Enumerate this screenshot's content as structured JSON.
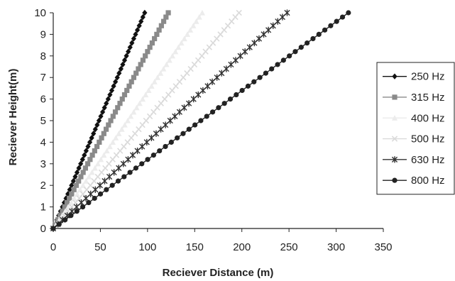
{
  "chart_data": {
    "type": "scatter",
    "title": "",
    "xlabel": "Reciever Distance (m)",
    "ylabel": "Reciever Height(m)",
    "xlim": [
      0,
      350
    ],
    "ylim": [
      0,
      10
    ],
    "x_ticks": [
      0,
      50,
      100,
      150,
      200,
      250,
      300,
      350
    ],
    "y_ticks": [
      0,
      1,
      2,
      3,
      4,
      5,
      6,
      7,
      8,
      9,
      10
    ],
    "grid": false,
    "legend_position": "right",
    "series": [
      {
        "name": "250 Hz",
        "marker": "diamond",
        "color": "#111111",
        "x": [
          0,
          97
        ],
        "y": [
          0,
          10
        ]
      },
      {
        "name": "315 Hz",
        "marker": "square",
        "color": "#8a8a8a",
        "x": [
          0,
          122
        ],
        "y": [
          0,
          10
        ]
      },
      {
        "name": "400 Hz",
        "marker": "triangle",
        "color": "#ececec",
        "x": [
          0,
          158
        ],
        "y": [
          0,
          10
        ]
      },
      {
        "name": "500 Hz",
        "marker": "x",
        "color": "#dadada",
        "x": [
          0,
          197
        ],
        "y": [
          0,
          10
        ]
      },
      {
        "name": "630 Hz",
        "marker": "star",
        "color": "#333333",
        "x": [
          0,
          248
        ],
        "y": [
          0,
          10
        ]
      },
      {
        "name": "800 Hz",
        "marker": "circle",
        "color": "#222222",
        "x": [
          0,
          313
        ],
        "y": [
          0,
          10
        ]
      }
    ]
  }
}
